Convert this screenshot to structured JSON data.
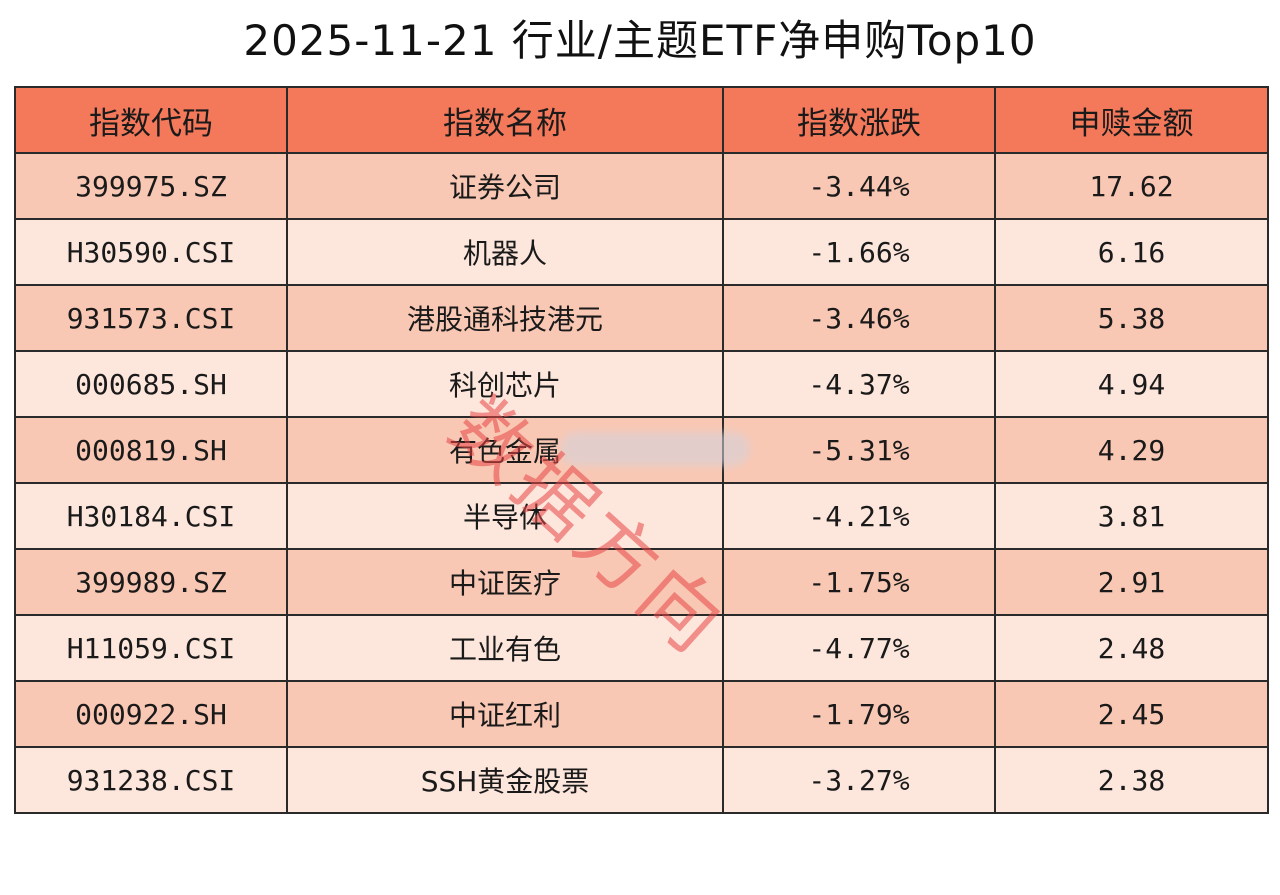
{
  "chart_data": {
    "type": "table",
    "title": "2025-11-21 行业/主题ETF净申购Top10",
    "columns": [
      "指数代码",
      "指数名称",
      "指数涨跌",
      "申赎金额"
    ],
    "rows": [
      {
        "code": "399975.SZ",
        "name": "证券公司",
        "change": "-3.44%",
        "amount": "17.62"
      },
      {
        "code": "H30590.CSI",
        "name": "机器人",
        "change": "-1.66%",
        "amount": "6.16"
      },
      {
        "code": "931573.CSI",
        "name": "港股通科技港元",
        "change": "-3.46%",
        "amount": "5.38"
      },
      {
        "code": "000685.SH",
        "name": "科创芯片",
        "change": "-4.37%",
        "amount": "4.94"
      },
      {
        "code": "000819.SH",
        "name": "有色金属",
        "change": "-5.31%",
        "amount": "4.29"
      },
      {
        "code": "H30184.CSI",
        "name": "半导体",
        "change": "-4.21%",
        "amount": "3.81"
      },
      {
        "code": "399989.SZ",
        "name": "中证医疗",
        "change": "-1.75%",
        "amount": "2.91"
      },
      {
        "code": "H11059.CSI",
        "name": "工业有色",
        "change": "-4.77%",
        "amount": "2.48"
      },
      {
        "code": "000922.SH",
        "name": "中证红利",
        "change": "-1.79%",
        "amount": "2.45"
      },
      {
        "code": "931238.CSI",
        "name": "SSH黄金股票",
        "change": "-3.27%",
        "amount": "2.38"
      }
    ]
  },
  "watermark": {
    "text": "数据方向"
  },
  "colors": {
    "header_bg": "#f4785a",
    "row_odd_bg": "#f9c8b4",
    "row_even_bg": "#fde6dc",
    "border": "#2a2a2a",
    "watermark": "#e84646"
  }
}
